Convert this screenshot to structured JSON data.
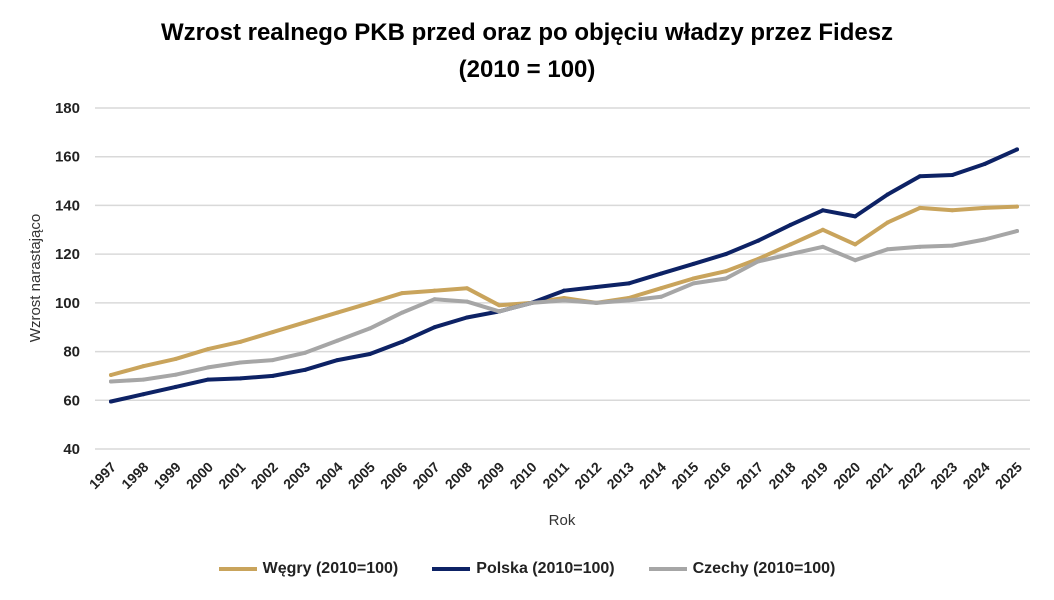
{
  "chart_data": {
    "type": "line",
    "title_line1": "Wzrost realnego PKB przed oraz po objęciu władzy przez Fidesz",
    "title_line2": "(2010 = 100)",
    "xlabel": "Rok",
    "ylabel": "Wzrost narastająco",
    "ylim": [
      40,
      180
    ],
    "yticks": [
      40,
      60,
      80,
      100,
      120,
      140,
      160,
      180
    ],
    "grid": true,
    "legend_position": "bottom",
    "x": [
      "1997",
      "1998",
      "1999",
      "2000",
      "2001",
      "2002",
      "2003",
      "2004",
      "2005",
      "2006",
      "2007",
      "2008",
      "2009",
      "2010",
      "2011",
      "2012",
      "2013",
      "2014",
      "2015",
      "2016",
      "2017",
      "2018",
      "2019",
      "2020",
      "2021",
      "2022",
      "2023",
      "2024",
      "2025"
    ],
    "series": [
      {
        "name": "Węgry (2010=100)",
        "color": "#C9A45C",
        "values": [
          70.4,
          74,
          77,
          81,
          84,
          88,
          92,
          96,
          100,
          104,
          105,
          106,
          99,
          100,
          102,
          100,
          102,
          106,
          110,
          113,
          118,
          124,
          130,
          124,
          133,
          139,
          138,
          139,
          139.5
        ]
      },
      {
        "name": "Polska (2010=100)",
        "color": "#0D2265",
        "values": [
          59.5,
          62.5,
          65.5,
          68.5,
          69,
          70,
          72.5,
          76.5,
          79,
          84,
          90,
          94,
          96.5,
          100,
          105,
          106.5,
          108,
          112,
          116,
          120,
          125.5,
          132,
          138,
          135.5,
          144.5,
          152,
          152.5,
          157,
          163
        ]
      },
      {
        "name": "Czechy (2010=100)",
        "color": "#A6A6A6",
        "values": [
          67.7,
          68.5,
          70.5,
          73.5,
          75.5,
          76.5,
          79.5,
          84.5,
          89.5,
          96,
          101.5,
          100.5,
          96.5,
          100,
          101,
          100,
          101,
          102.5,
          108,
          110,
          117,
          120,
          123,
          117.5,
          122,
          123,
          123.5,
          126,
          129.5
        ]
      }
    ]
  }
}
